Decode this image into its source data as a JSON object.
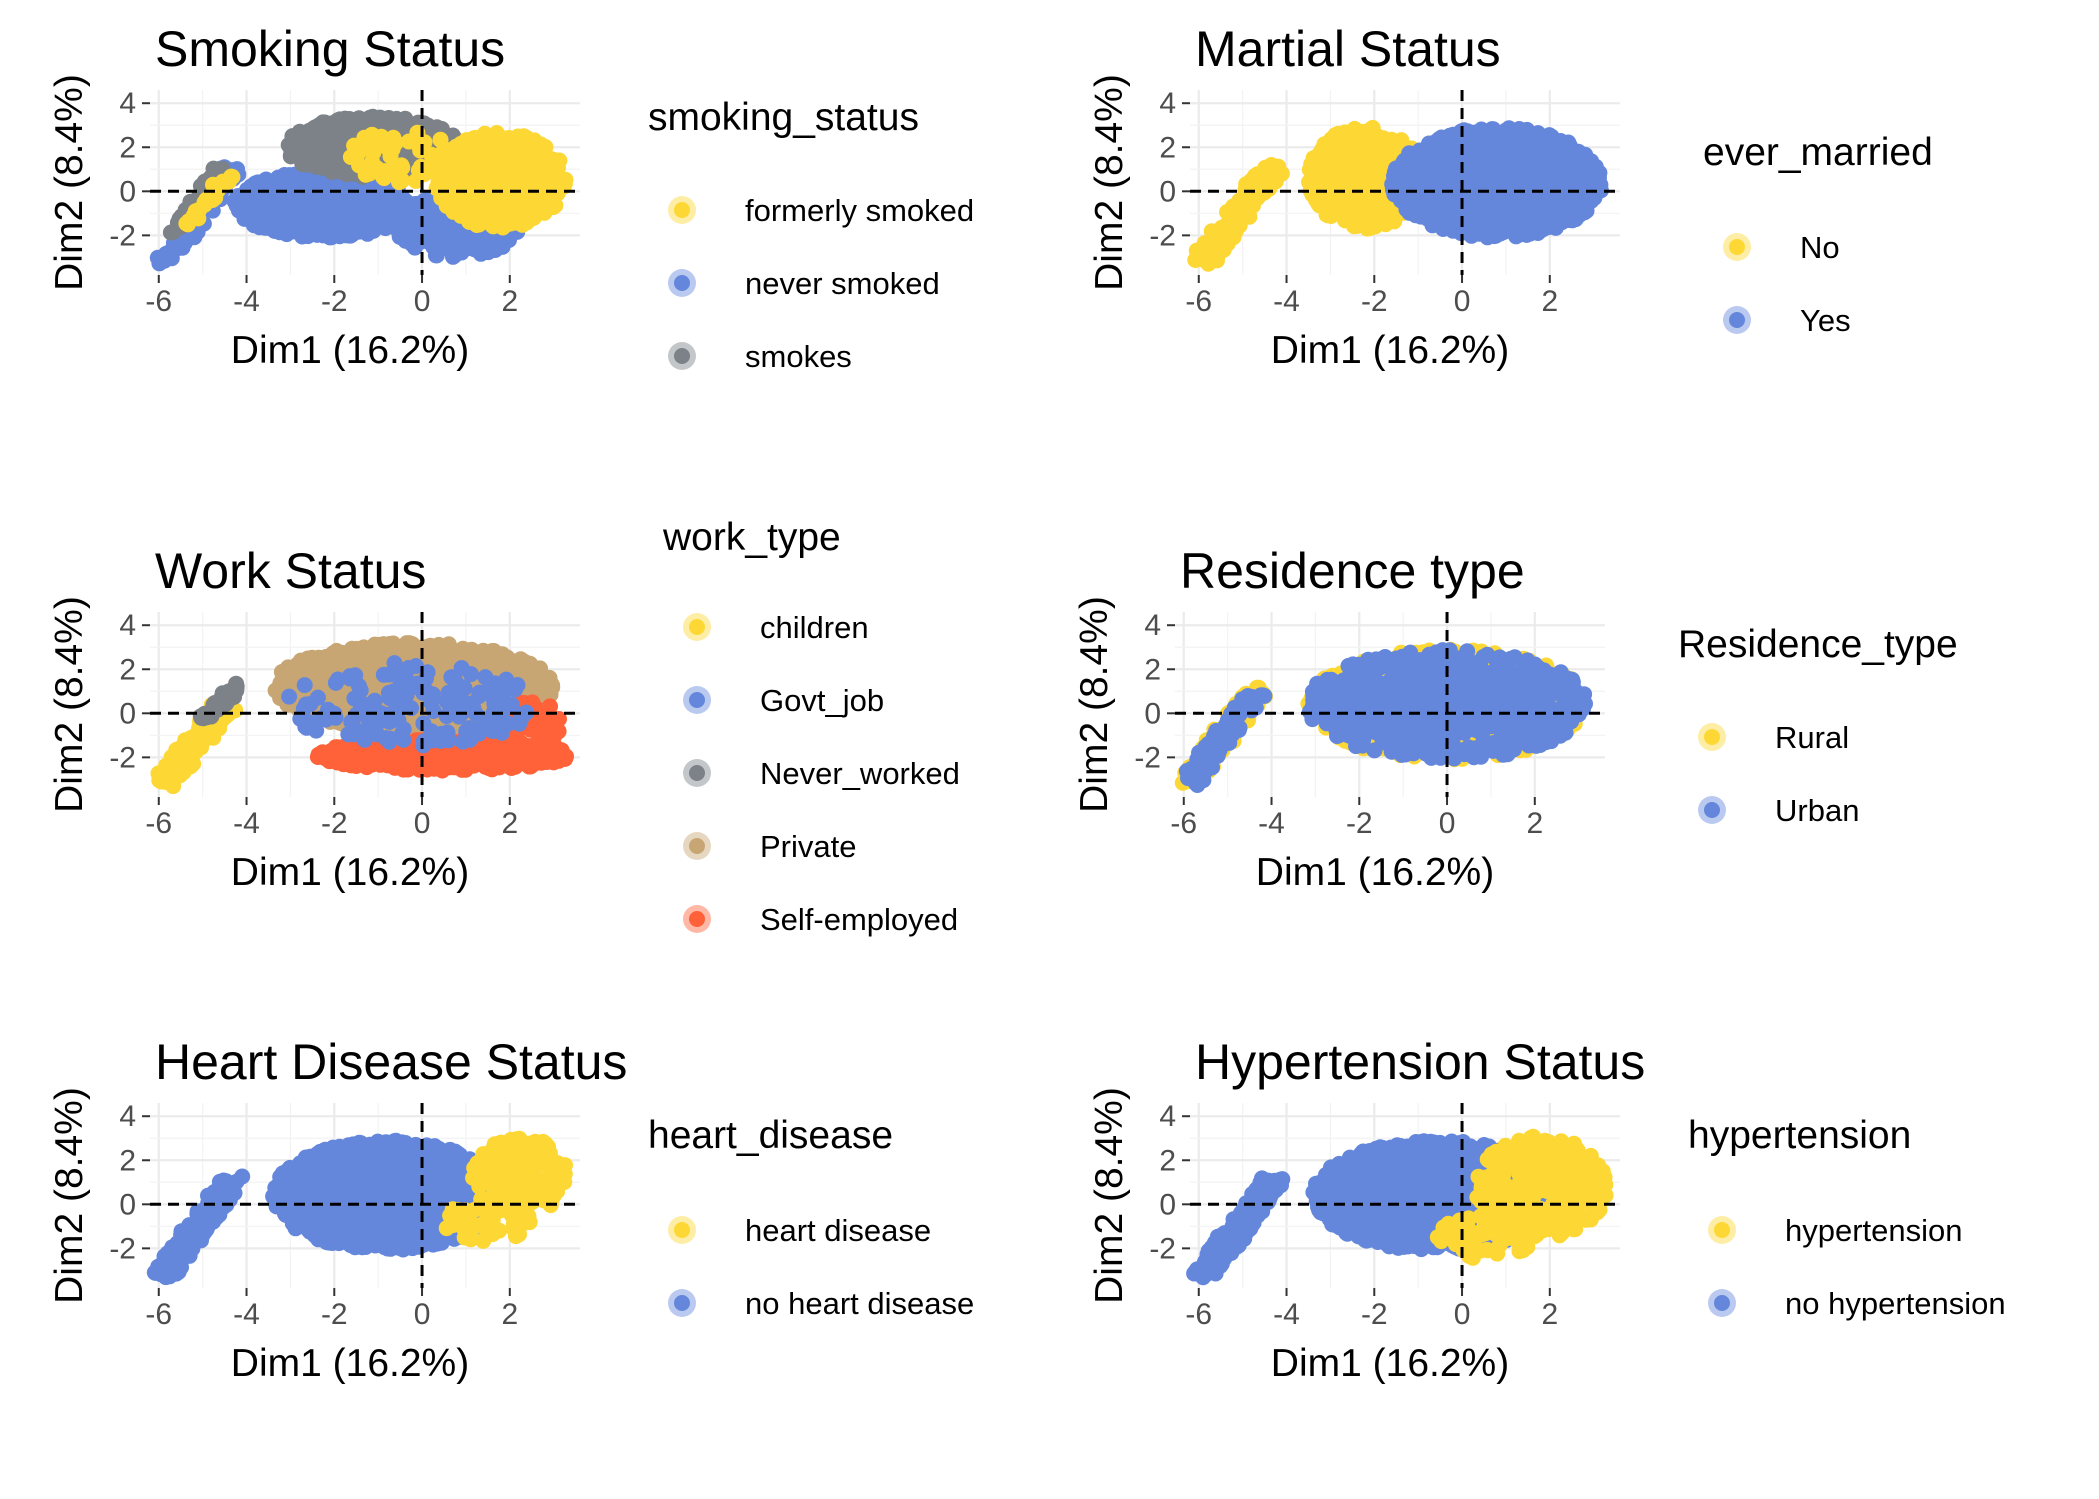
{
  "chart_data": [
    {
      "type": "scatter",
      "title": "Smoking Status",
      "xlabel": "Dim1 (16.2%)",
      "ylabel": "Dim2 (8.4%)",
      "xlim": [
        -6.2,
        3.6
      ],
      "ylim": [
        -3.8,
        4.6
      ],
      "x_ticks": [
        -6,
        -4,
        -2,
        0,
        2
      ],
      "y_ticks": [
        -2,
        0,
        2,
        4
      ],
      "grid": true,
      "reference_lines": {
        "x": 0,
        "y": 0,
        "style": "dashed"
      },
      "legend": {
        "title": "smoking_status",
        "placement": "right",
        "entries": [
          {
            "label": "formerly smoked",
            "color": "#FDD835"
          },
          {
            "label": "never smoked",
            "color": "#6487DC"
          },
          {
            "label": "smokes",
            "color": "#7C8288"
          }
        ]
      },
      "series": [
        {
          "color": "#6487DC",
          "regions": [
            {
              "cx": -2.2,
              "cy": -0.6,
              "rx": 2.1,
              "ry": 1.5,
              "n": 700
            },
            {
              "cx": 0.8,
              "cy": -1.6,
              "rx": 1.4,
              "ry": 1.4,
              "n": 300
            },
            {
              "band": true,
              "x0": -5.9,
              "y0": -3.2,
              "x1": -4.3,
              "y1": 1.1,
              "width": 0.5,
              "n": 90
            }
          ]
        },
        {
          "color": "#7C8288",
          "regions": [
            {
              "cx": -1.1,
              "cy": 2.0,
              "rx": 2.0,
              "ry": 1.4,
              "n": 450
            },
            {
              "band": true,
              "x0": -5.6,
              "y0": -1.8,
              "x1": -4.6,
              "y1": 1.0,
              "width": 0.35,
              "n": 40
            }
          ]
        },
        {
          "color": "#FDD835",
          "regions": [
            {
              "cx": 1.8,
              "cy": 0.5,
              "rx": 1.5,
              "ry": 2.2,
              "n": 350
            },
            {
              "cx": -0.5,
              "cy": 1.6,
              "rx": 1.2,
              "ry": 1.2,
              "n": 60
            },
            {
              "band": true,
              "x0": -5.3,
              "y0": -1.5,
              "x1": -4.4,
              "y1": 0.8,
              "width": 0.3,
              "n": 25
            }
          ]
        }
      ]
    },
    {
      "type": "scatter",
      "title": "Martial Status",
      "xlabel": "Dim1 (16.2%)",
      "ylabel": "Dim2 (8.4%)",
      "xlim": [
        -6.2,
        3.6
      ],
      "ylim": [
        -3.8,
        4.6
      ],
      "x_ticks": [
        -6,
        -4,
        -2,
        0,
        2
      ],
      "y_ticks": [
        -2,
        0,
        2,
        4
      ],
      "grid": true,
      "reference_lines": {
        "x": 0,
        "y": 0,
        "style": "dashed"
      },
      "legend": {
        "title": "ever_married",
        "placement": "right",
        "entries": [
          {
            "label": "No",
            "color": "#FDD835"
          },
          {
            "label": "Yes",
            "color": "#6487DC"
          }
        ]
      },
      "series": [
        {
          "color": "#FDD835",
          "regions": [
            {
              "cx": -2.2,
              "cy": 0.6,
              "rx": 1.3,
              "ry": 2.3,
              "n": 550
            },
            {
              "band": true,
              "x0": -5.9,
              "y0": -3.2,
              "x1": -4.3,
              "y1": 1.1,
              "width": 0.55,
              "n": 160
            }
          ]
        },
        {
          "color": "#6487DC",
          "regions": [
            {
              "cx": 0.8,
              "cy": 0.4,
              "rx": 2.4,
              "ry": 2.5,
              "n": 1100
            }
          ]
        }
      ]
    },
    {
      "type": "scatter",
      "title": "Work Status",
      "xlabel": "Dim1 (16.2%)",
      "ylabel": "Dim2 (8.4%)",
      "xlim": [
        -6.2,
        3.6
      ],
      "ylim": [
        -3.8,
        4.6
      ],
      "x_ticks": [
        -6,
        -4,
        -2,
        0,
        2
      ],
      "y_ticks": [
        -2,
        0,
        2,
        4
      ],
      "grid": true,
      "reference_lines": {
        "x": 0,
        "y": 0,
        "style": "dashed"
      },
      "legend": {
        "title": "work_type",
        "placement": "right",
        "entries": [
          {
            "label": "children",
            "color": "#FDD835"
          },
          {
            "label": "Govt_job",
            "color": "#6487DC"
          },
          {
            "label": "Never_worked",
            "color": "#7C8288"
          },
          {
            "label": "Private",
            "color": "#C8A674"
          },
          {
            "label": "Self-employed",
            "color": "#FF6238"
          }
        ]
      },
      "series": [
        {
          "color": "#FDD835",
          "regions": [
            {
              "band": true,
              "x0": -5.9,
              "y0": -3.2,
              "x1": -4.5,
              "y1": 0.3,
              "width": 0.55,
              "n": 170
            }
          ]
        },
        {
          "color": "#7C8288",
          "regions": [
            {
              "band": true,
              "x0": -5.0,
              "y0": -0.2,
              "x1": -4.1,
              "y1": 1.3,
              "width": 0.35,
              "n": 40
            }
          ]
        },
        {
          "color": "#C8A674",
          "regions": [
            {
              "cx": -0.2,
              "cy": 1.2,
              "rx": 3.2,
              "ry": 2.0,
              "n": 1100
            }
          ]
        },
        {
          "color": "#FF6238",
          "regions": [
            {
              "cx": 0.5,
              "cy": -1.9,
              "rx": 2.9,
              "ry": 0.7,
              "n": 400
            },
            {
              "cx": 2.4,
              "cy": -0.6,
              "rx": 0.8,
              "ry": 1.2,
              "n": 80
            }
          ]
        },
        {
          "color": "#6487DC",
          "regions": [
            {
              "cx": -0.3,
              "cy": 0.4,
              "rx": 2.8,
              "ry": 2.0,
              "n": 160
            }
          ]
        }
      ]
    },
    {
      "type": "scatter",
      "title": "Residence type",
      "xlabel": "Dim1 (16.2%)",
      "ylabel": "Dim2 (8.4%)",
      "xlim": [
        -6.2,
        3.6
      ],
      "ylim": [
        -3.8,
        4.6
      ],
      "x_ticks": [
        -6,
        -4,
        -2,
        0,
        2
      ],
      "y_ticks": [
        -2,
        0,
        2,
        4
      ],
      "grid": true,
      "reference_lines": {
        "x": 0,
        "y": 0,
        "style": "dashed"
      },
      "legend": {
        "title": "Residence_type",
        "placement": "right",
        "entries": [
          {
            "label": "Rural",
            "color": "#FDD835"
          },
          {
            "label": "Urban",
            "color": "#6487DC"
          }
        ]
      },
      "series": [
        {
          "color": "#FDD835",
          "regions": [
            {
              "cx": 0.0,
              "cy": 0.4,
              "rx": 3.2,
              "ry": 2.5,
              "n": 650
            },
            {
              "band": true,
              "x0": -5.9,
              "y0": -3.2,
              "x1": -4.3,
              "y1": 1.1,
              "width": 0.55,
              "n": 90
            }
          ]
        },
        {
          "color": "#6487DC",
          "regions": [
            {
              "cx": 0.0,
              "cy": 0.4,
              "rx": 3.2,
              "ry": 2.5,
              "n": 650
            },
            {
              "band": true,
              "x0": -5.9,
              "y0": -3.2,
              "x1": -4.3,
              "y1": 1.1,
              "width": 0.55,
              "n": 90
            }
          ]
        }
      ]
    },
    {
      "type": "scatter",
      "title": "Heart Disease Status",
      "xlabel": "Dim1 (16.2%)",
      "ylabel": "Dim2 (8.4%)",
      "xlim": [
        -6.2,
        3.6
      ],
      "ylim": [
        -3.8,
        4.6
      ],
      "x_ticks": [
        -6,
        -4,
        -2,
        0,
        2
      ],
      "y_ticks": [
        -2,
        0,
        2,
        4
      ],
      "grid": true,
      "reference_lines": {
        "x": 0,
        "y": 0,
        "style": "dashed"
      },
      "legend": {
        "title": "heart_disease",
        "placement": "right",
        "entries": [
          {
            "label": "heart disease",
            "color": "#FDD835"
          },
          {
            "label": "no heart disease",
            "color": "#6487DC"
          }
        ]
      },
      "series": [
        {
          "color": "#6487DC",
          "regions": [
            {
              "cx": -0.8,
              "cy": 0.4,
              "rx": 2.6,
              "ry": 2.5,
              "n": 1300
            },
            {
              "band": true,
              "x0": -5.9,
              "y0": -3.2,
              "x1": -4.3,
              "y1": 1.1,
              "width": 0.55,
              "n": 170
            }
          ]
        },
        {
          "color": "#FDD835",
          "regions": [
            {
              "cx": 2.2,
              "cy": 1.3,
              "rx": 1.1,
              "ry": 1.8,
              "n": 200
            },
            {
              "cx": 1.5,
              "cy": -0.8,
              "rx": 1.0,
              "ry": 1.0,
              "n": 40
            }
          ]
        }
      ]
    },
    {
      "type": "scatter",
      "title": "Hypertension Status",
      "xlabel": "Dim1 (16.2%)",
      "ylabel": "Dim2 (8.4%)",
      "xlim": [
        -6.2,
        3.6
      ],
      "ylim": [
        -3.8,
        4.6
      ],
      "x_ticks": [
        -6,
        -4,
        -2,
        0,
        2
      ],
      "y_ticks": [
        -2,
        0,
        2,
        4
      ],
      "grid": true,
      "reference_lines": {
        "x": 0,
        "y": 0,
        "style": "dashed"
      },
      "legend": {
        "title": "hypertension",
        "placement": "right",
        "entries": [
          {
            "label": "hypertension",
            "color": "#FDD835"
          },
          {
            "label": "no hypertension",
            "color": "#6487DC"
          }
        ]
      },
      "series": [
        {
          "color": "#6487DC",
          "regions": [
            {
              "cx": -0.6,
              "cy": 0.4,
              "rx": 2.8,
              "ry": 2.5,
              "n": 1200
            },
            {
              "band": true,
              "x0": -5.9,
              "y0": -3.2,
              "x1": -4.3,
              "y1": 1.1,
              "width": 0.55,
              "n": 170
            }
          ]
        },
        {
          "color": "#FDD835",
          "regions": [
            {
              "cx": 1.8,
              "cy": 0.8,
              "rx": 1.5,
              "ry": 2.3,
              "n": 280
            },
            {
              "cx": 0.6,
              "cy": -1.5,
              "rx": 1.2,
              "ry": 1.0,
              "n": 50
            }
          ]
        }
      ]
    }
  ]
}
